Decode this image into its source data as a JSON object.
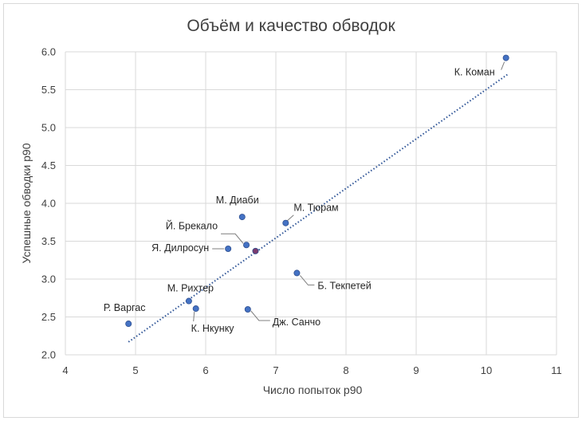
{
  "chart_data": {
    "type": "scatter",
    "title": "Объём и качество обводок",
    "xlabel": "Число попыток p90",
    "ylabel": "Успешные обводки p90",
    "xlim": [
      4,
      11
    ],
    "ylim": [
      2.0,
      6.0
    ],
    "x_ticks": [
      "4",
      "5",
      "6",
      "7",
      "8",
      "9",
      "10",
      "11"
    ],
    "y_ticks": [
      "2.0",
      "2.5",
      "3.0",
      "3.5",
      "4.0",
      "4.5",
      "5.0",
      "5.5",
      "6.0"
    ],
    "grid": true,
    "point_color": "#4472c4",
    "highlight_color": "#7b3a6e",
    "trendline": {
      "style": "dotted",
      "color": "#2f5597",
      "x": [
        4.9,
        10.3
      ],
      "y": [
        2.17,
        5.7
      ]
    },
    "points": [
      {
        "name": "К. Коман",
        "x": 10.28,
        "y": 5.92
      },
      {
        "name": "М. Диаби",
        "x": 6.52,
        "y": 3.82
      },
      {
        "name": "М. Тюрам",
        "x": 7.14,
        "y": 3.74
      },
      {
        "name": "Й. Брекало",
        "x": 6.58,
        "y": 3.45
      },
      {
        "name": "Я. Дилросун",
        "x": 6.32,
        "y": 3.4
      },
      {
        "name": "Б. Текпетей",
        "x": 7.3,
        "y": 3.08
      },
      {
        "name": "М. Рихтер",
        "x": 5.76,
        "y": 2.71
      },
      {
        "name": "К. Нкунку",
        "x": 5.86,
        "y": 2.61
      },
      {
        "name": "Дж. Санчо",
        "x": 6.6,
        "y": 2.6
      },
      {
        "name": "Р. Варгас",
        "x": 4.9,
        "y": 2.41
      },
      {
        "name": "",
        "x": 6.71,
        "y": 3.37,
        "highlight": true
      }
    ]
  }
}
